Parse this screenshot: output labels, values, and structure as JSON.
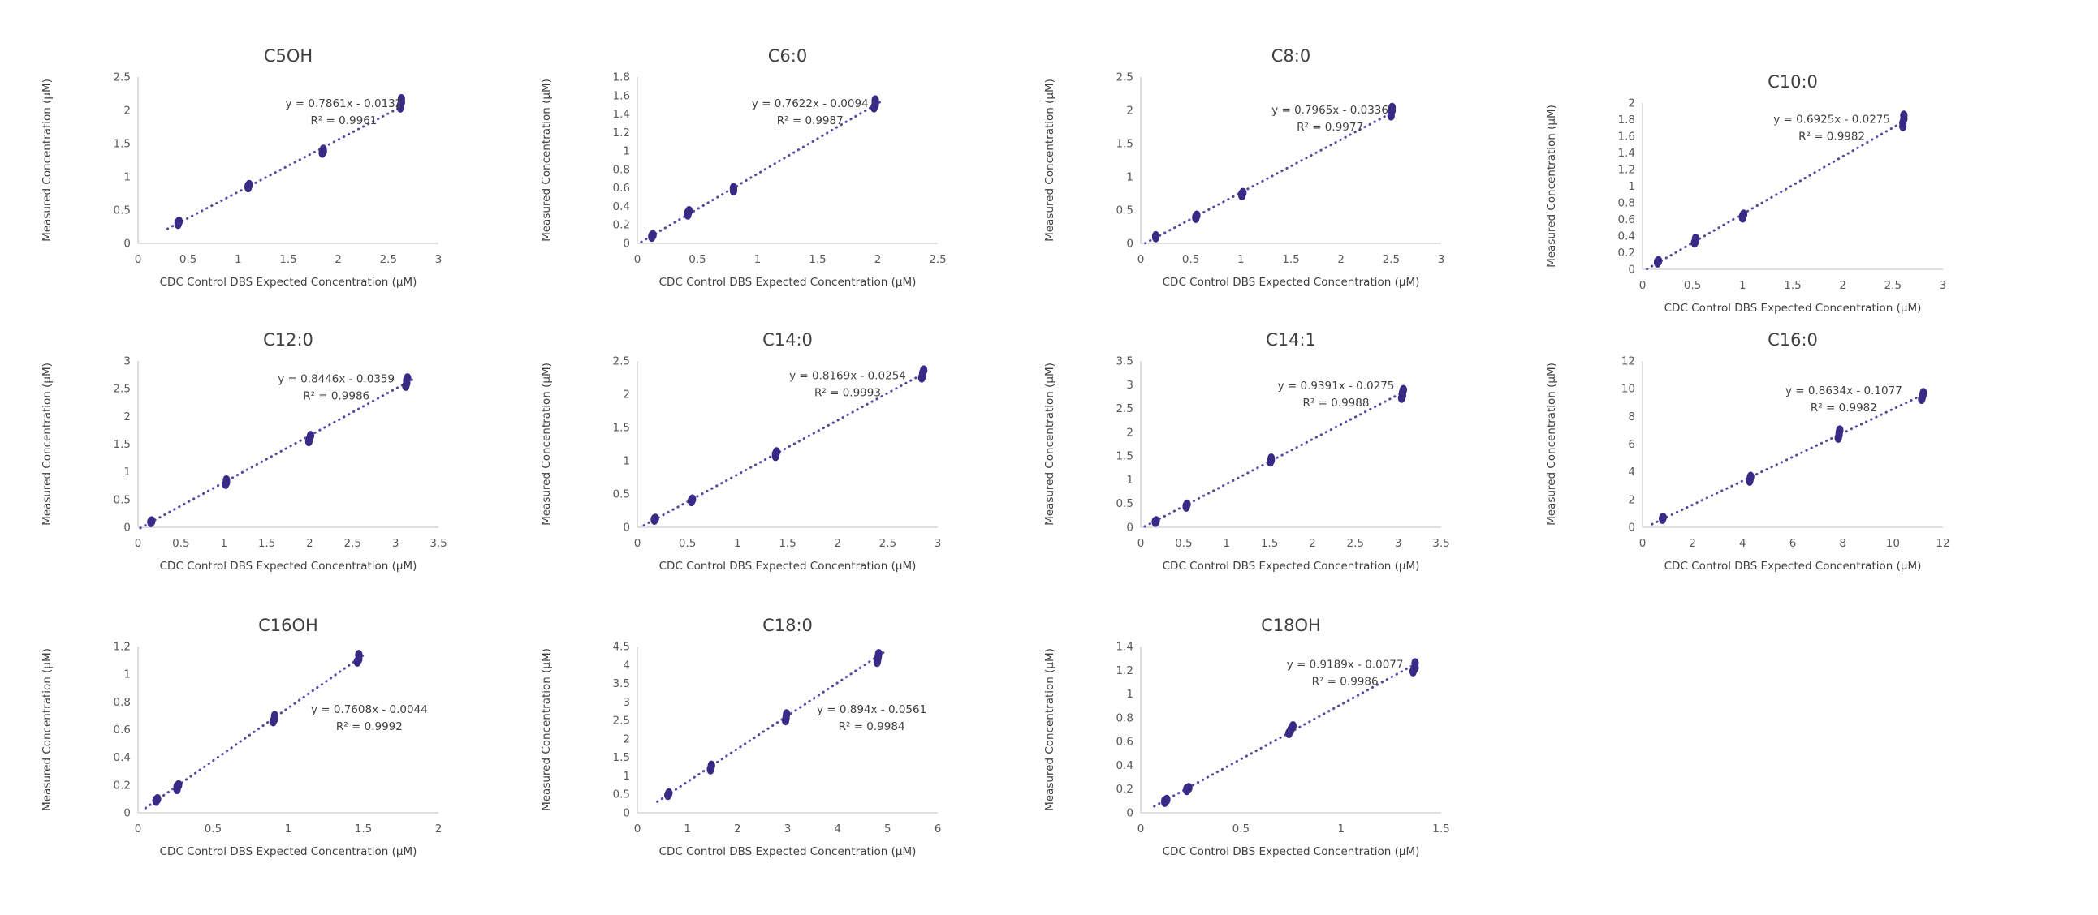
{
  "figure": {
    "background": "#ffffff",
    "shared_x_label": "CDC Control DBS Expected Concentration (µM)",
    "shared_y_label": "Measured Concentration (µM)"
  },
  "styles": {
    "marker_color": "#392a86",
    "trendline_color": "#554aa0",
    "axis_line_color": "#d6d6d6",
    "tick_text_color": "#595959",
    "title_text_color": "#404040"
  },
  "chart_data": [
    {
      "type": "scatter",
      "title": "C5OH",
      "equation": "y = 0.7861x - 0.0132",
      "r_squared": "R² = 0.9961",
      "xlabel": "CDC Control DBS Expected Concentration (µM)",
      "ylabel": "Measured Concentration (µM)",
      "xlim": [
        0,
        3
      ],
      "xstep": 0.5,
      "ylim": [
        0,
        2.5
      ],
      "ystep": 0.5,
      "grid": false,
      "legend": "none",
      "trend": {
        "slope": 0.7861,
        "intercept": -0.0132
      },
      "eq_pos": [
        0.685,
        0.18
      ],
      "points": [
        [
          0.4,
          0.29
        ],
        [
          0.4,
          0.31
        ],
        [
          0.41,
          0.33
        ],
        [
          1.1,
          0.84
        ],
        [
          1.1,
          0.86
        ],
        [
          1.11,
          0.88
        ],
        [
          1.84,
          1.36
        ],
        [
          1.85,
          1.38
        ],
        [
          1.85,
          1.41
        ],
        [
          2.62,
          2.04
        ],
        [
          2.62,
          2.07
        ],
        [
          2.63,
          2.12
        ],
        [
          2.63,
          2.17
        ]
      ]
    },
    {
      "type": "scatter",
      "title": "C6:0",
      "equation": "y = 0.7622x - 0.0094",
      "r_squared": "R² = 0.9987",
      "xlabel": "CDC Control DBS Expected Concentration (µM)",
      "ylabel": "Measured Concentration (µM)",
      "xlim": [
        0,
        2.5
      ],
      "xstep": 0.5,
      "ylim": [
        0,
        1.8
      ],
      "ystep": 0.2,
      "grid": false,
      "legend": "none",
      "trend": {
        "slope": 0.7622,
        "intercept": -0.0094
      },
      "eq_pos": [
        0.575,
        0.18
      ],
      "points": [
        [
          0.12,
          0.07
        ],
        [
          0.12,
          0.08
        ],
        [
          0.13,
          0.09
        ],
        [
          0.42,
          0.31
        ],
        [
          0.42,
          0.33
        ],
        [
          0.43,
          0.35
        ],
        [
          0.8,
          0.57
        ],
        [
          0.8,
          0.59
        ],
        [
          0.8,
          0.6
        ],
        [
          1.97,
          1.47
        ],
        [
          1.98,
          1.5
        ],
        [
          1.98,
          1.52
        ],
        [
          1.98,
          1.55
        ]
      ]
    },
    {
      "type": "scatter",
      "title": "C8:0",
      "equation": "y = 0.7965x - 0.0336",
      "r_squared": "R² = 0.9977",
      "xlabel": "CDC Control DBS Expected Concentration (µM)",
      "ylabel": "Measured Concentration (µM)",
      "xlim": [
        0,
        3
      ],
      "xstep": 0.5,
      "ylim": [
        0,
        2.5
      ],
      "ystep": 0.5,
      "grid": false,
      "legend": "none",
      "trend": {
        "slope": 0.7965,
        "intercept": -0.0336
      },
      "eq_pos": [
        0.63,
        0.22
      ],
      "points": [
        [
          0.15,
          0.09
        ],
        [
          0.15,
          0.1
        ],
        [
          0.15,
          0.11
        ],
        [
          0.55,
          0.38
        ],
        [
          0.55,
          0.4
        ],
        [
          0.56,
          0.42
        ],
        [
          1.01,
          0.72
        ],
        [
          1.01,
          0.74
        ],
        [
          1.02,
          0.76
        ],
        [
          2.5,
          1.92
        ],
        [
          2.5,
          1.96
        ],
        [
          2.51,
          2.0
        ],
        [
          2.51,
          2.04
        ]
      ]
    },
    {
      "type": "scatter",
      "title": "C10:0",
      "equation": "y = 0.6925x - 0.0275",
      "r_squared": "R² = 0.9982",
      "xlabel": "CDC Control DBS Expected Concentration (µM)",
      "ylabel": "Measured Concentration (µM)",
      "xlim": [
        0,
        3
      ],
      "xstep": 0.5,
      "ylim": [
        0,
        2
      ],
      "ystep": 0.2,
      "grid": false,
      "legend": "none",
      "trend": {
        "slope": 0.6925,
        "intercept": -0.0275
      },
      "eq_pos": [
        0.63,
        0.12
      ],
      "points": [
        [
          0.15,
          0.08
        ],
        [
          0.15,
          0.09
        ],
        [
          0.16,
          0.1
        ],
        [
          0.52,
          0.32
        ],
        [
          0.53,
          0.34
        ],
        [
          0.53,
          0.37
        ],
        [
          1.0,
          0.62
        ],
        [
          1.0,
          0.64
        ],
        [
          1.01,
          0.66
        ],
        [
          2.6,
          1.72
        ],
        [
          2.6,
          1.76
        ],
        [
          2.61,
          1.81
        ],
        [
          2.61,
          1.85
        ]
      ]
    },
    {
      "type": "scatter",
      "title": "C12:0",
      "equation": "y = 0.8446x - 0.0359",
      "r_squared": "R² = 0.9986",
      "xlabel": "CDC Control DBS Expected Concentration (µM)",
      "ylabel": "Measured Concentration (µM)",
      "xlim": [
        0,
        3.5
      ],
      "xstep": 0.5,
      "ylim": [
        0,
        3
      ],
      "ystep": 0.5,
      "grid": false,
      "legend": "none",
      "trend": {
        "slope": 0.8446,
        "intercept": -0.0359
      },
      "eq_pos": [
        0.66,
        0.13
      ],
      "points": [
        [
          0.15,
          0.09
        ],
        [
          0.15,
          0.1
        ],
        [
          0.16,
          0.11
        ],
        [
          1.02,
          0.78
        ],
        [
          1.03,
          0.81
        ],
        [
          1.03,
          0.85
        ],
        [
          1.99,
          1.55
        ],
        [
          2.0,
          1.6
        ],
        [
          2.01,
          1.65
        ],
        [
          3.12,
          2.55
        ],
        [
          3.13,
          2.6
        ],
        [
          3.13,
          2.65
        ],
        [
          3.14,
          2.69
        ]
      ]
    },
    {
      "type": "scatter",
      "title": "C14:0",
      "equation": "y = 0.8169x - 0.0254",
      "r_squared": "R² = 0.9993",
      "xlabel": "CDC Control DBS Expected Concentration (µM)",
      "ylabel": "Measured Concentration (µM)",
      "xlim": [
        0,
        3
      ],
      "xstep": 0.5,
      "ylim": [
        0,
        2.5
      ],
      "ystep": 0.5,
      "grid": false,
      "legend": "none",
      "trend": {
        "slope": 0.8169,
        "intercept": -0.0254
      },
      "eq_pos": [
        0.7,
        0.11
      ],
      "points": [
        [
          0.17,
          0.11
        ],
        [
          0.17,
          0.12
        ],
        [
          0.18,
          0.13
        ],
        [
          0.54,
          0.39
        ],
        [
          0.54,
          0.4
        ],
        [
          0.55,
          0.42
        ],
        [
          1.38,
          1.07
        ],
        [
          1.38,
          1.1
        ],
        [
          1.39,
          1.13
        ],
        [
          2.84,
          2.25
        ],
        [
          2.85,
          2.28
        ],
        [
          2.85,
          2.32
        ],
        [
          2.86,
          2.36
        ]
      ]
    },
    {
      "type": "scatter",
      "title": "C14:1",
      "equation": "y = 0.9391x - 0.0275",
      "r_squared": "R² = 0.9988",
      "xlabel": "CDC Control DBS Expected Concentration (µM)",
      "ylabel": "Measured Concentration (µM)",
      "xlim": [
        0,
        3.5
      ],
      "xstep": 0.5,
      "ylim": [
        0,
        3.5
      ],
      "ystep": 0.5,
      "grid": false,
      "legend": "none",
      "trend": {
        "slope": 0.9391,
        "intercept": -0.0275
      },
      "eq_pos": [
        0.65,
        0.17
      ],
      "points": [
        [
          0.17,
          0.11
        ],
        [
          0.17,
          0.12
        ],
        [
          0.18,
          0.13
        ],
        [
          0.53,
          0.43
        ],
        [
          0.53,
          0.45
        ],
        [
          0.54,
          0.48
        ],
        [
          1.51,
          1.38
        ],
        [
          1.52,
          1.41
        ],
        [
          1.52,
          1.45
        ],
        [
          3.04,
          2.72
        ],
        [
          3.05,
          2.77
        ],
        [
          3.05,
          2.83
        ],
        [
          3.06,
          2.89
        ]
      ]
    },
    {
      "type": "scatter",
      "title": "C16:0",
      "equation": "y = 0.8634x - 0.1077",
      "r_squared": "R² = 0.9982",
      "xlabel": "CDC Control DBS Expected Concentration (µM)",
      "ylabel": "Measured Concentration (µM)",
      "xlim": [
        0,
        12
      ],
      "xstep": 2,
      "ylim": [
        0,
        12
      ],
      "ystep": 2,
      "grid": false,
      "legend": "none",
      "trend": {
        "slope": 0.8634,
        "intercept": -0.1077
      },
      "eq_pos": [
        0.67,
        0.2
      ],
      "points": [
        [
          0.8,
          0.6
        ],
        [
          0.8,
          0.65
        ],
        [
          0.82,
          0.7
        ],
        [
          4.28,
          3.35
        ],
        [
          4.3,
          3.5
        ],
        [
          4.32,
          3.65
        ],
        [
          7.82,
          6.45
        ],
        [
          7.85,
          6.65
        ],
        [
          7.86,
          6.85
        ],
        [
          7.88,
          7.0
        ],
        [
          11.15,
          9.25
        ],
        [
          11.18,
          9.4
        ],
        [
          11.2,
          9.55
        ],
        [
          11.22,
          9.7
        ]
      ]
    },
    {
      "type": "scatter",
      "title": "C16OH",
      "equation": "y = 0.7608x - 0.0044",
      "r_squared": "R² = 0.9992",
      "xlabel": "CDC Control DBS Expected Concentration (µM)",
      "ylabel": "Measured Concentration (µM)",
      "xlim": [
        0,
        2
      ],
      "xstep": 0.5,
      "ylim": [
        0,
        1.2
      ],
      "ystep": 0.2,
      "grid": false,
      "legend": "none",
      "trend": {
        "slope": 0.7608,
        "intercept": -0.0044
      },
      "eq_pos": [
        0.77,
        0.4
      ],
      "points": [
        [
          0.12,
          0.085
        ],
        [
          0.12,
          0.09
        ],
        [
          0.13,
          0.1
        ],
        [
          0.26,
          0.17
        ],
        [
          0.26,
          0.19
        ],
        [
          0.27,
          0.2
        ],
        [
          0.9,
          0.66
        ],
        [
          0.91,
          0.68
        ],
        [
          0.91,
          0.7
        ],
        [
          1.46,
          1.09
        ],
        [
          1.47,
          1.11
        ],
        [
          1.47,
          1.14
        ]
      ]
    },
    {
      "type": "scatter",
      "title": "C18:0",
      "equation": "y = 0.894x - 0.0561",
      "r_squared": "R² = 0.9984",
      "xlabel": "CDC Control DBS Expected Concentration (µM)",
      "ylabel": "Measured Concentration (µM)",
      "xlim": [
        0,
        6
      ],
      "xstep": 1,
      "ylim": [
        0,
        4.5
      ],
      "ystep": 0.5,
      "grid": false,
      "legend": "none",
      "trend": {
        "slope": 0.894,
        "intercept": -0.0561
      },
      "eq_pos": [
        0.78,
        0.4
      ],
      "points": [
        [
          0.61,
          0.48
        ],
        [
          0.62,
          0.5
        ],
        [
          0.63,
          0.53
        ],
        [
          1.46,
          1.17
        ],
        [
          1.47,
          1.22
        ],
        [
          1.48,
          1.28
        ],
        [
          2.96,
          2.5
        ],
        [
          2.97,
          2.58
        ],
        [
          2.98,
          2.67
        ],
        [
          4.79,
          4.08
        ],
        [
          4.8,
          4.15
        ],
        [
          4.81,
          4.22
        ],
        [
          4.82,
          4.3
        ]
      ]
    },
    {
      "type": "scatter",
      "title": "C18OH",
      "equation": "y = 0.9189x - 0.0077",
      "r_squared": "R² = 0.9986",
      "xlabel": "CDC Control DBS Expected Concentration (µM)",
      "ylabel": "Measured Concentration (µM)",
      "xlim": [
        0,
        1.5
      ],
      "xstep": 0.5,
      "ylim": [
        0,
        1.4
      ],
      "ystep": 0.2,
      "grid": false,
      "legend": "none",
      "trend": {
        "slope": 0.9189,
        "intercept": -0.0077
      },
      "eq_pos": [
        0.68,
        0.13
      ],
      "points": [
        [
          0.12,
          0.09
        ],
        [
          0.12,
          0.1
        ],
        [
          0.13,
          0.11
        ],
        [
          0.23,
          0.19
        ],
        [
          0.23,
          0.2
        ],
        [
          0.24,
          0.21
        ],
        [
          0.74,
          0.67
        ],
        [
          0.75,
          0.7
        ],
        [
          0.76,
          0.73
        ],
        [
          1.36,
          1.19
        ],
        [
          1.37,
          1.22
        ],
        [
          1.37,
          1.26
        ]
      ]
    }
  ]
}
